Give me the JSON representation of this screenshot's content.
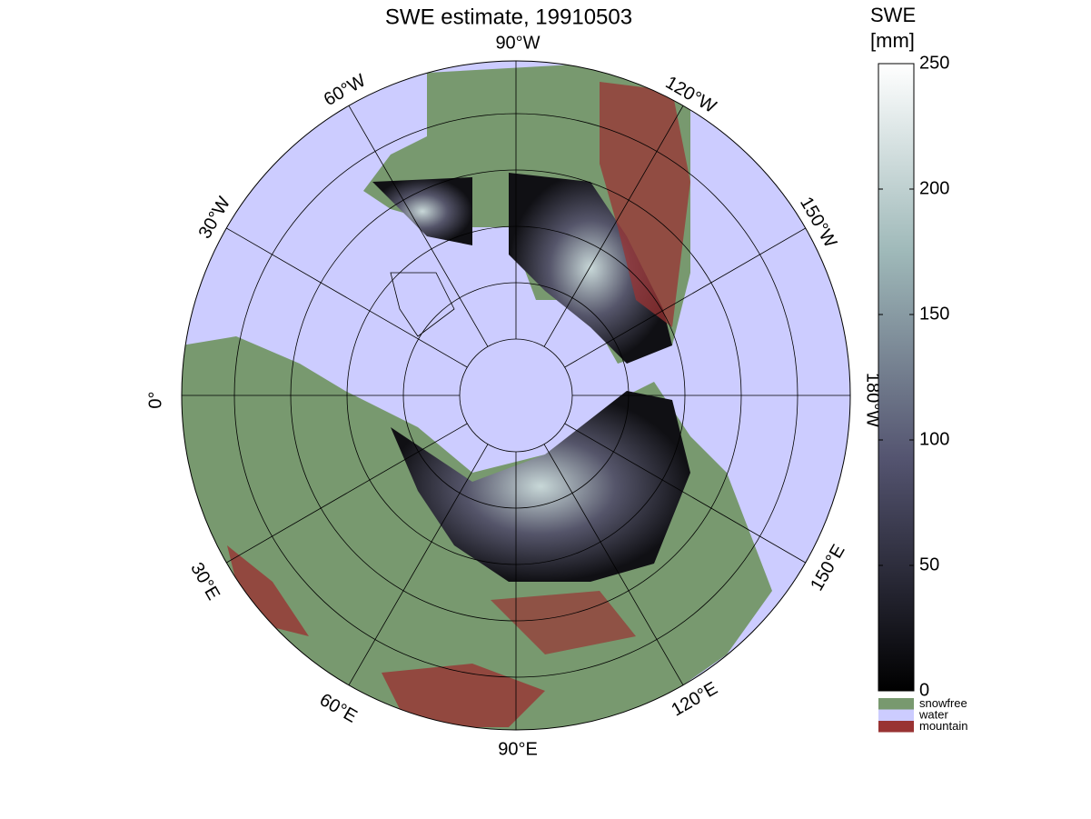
{
  "title": "SWE estimate, 19910503",
  "longitude_labels": [
    "90°W",
    "120°W",
    "150°W",
    "180°W",
    "150°E",
    "120°E",
    "90°E",
    "60°E",
    "30°E",
    "0°",
    "30°W",
    "60°W"
  ],
  "colorbar": {
    "label": [
      "SWE",
      "[mm]"
    ],
    "lim": [
      0,
      250
    ],
    "ticks": [
      0,
      50,
      100,
      150,
      200,
      250
    ]
  },
  "legend": [
    {
      "name": "snowfree",
      "color": "#78996f"
    },
    {
      "name": "water",
      "color": "#ccccff"
    },
    {
      "name": "mountain",
      "color": "#993333"
    }
  ]
}
